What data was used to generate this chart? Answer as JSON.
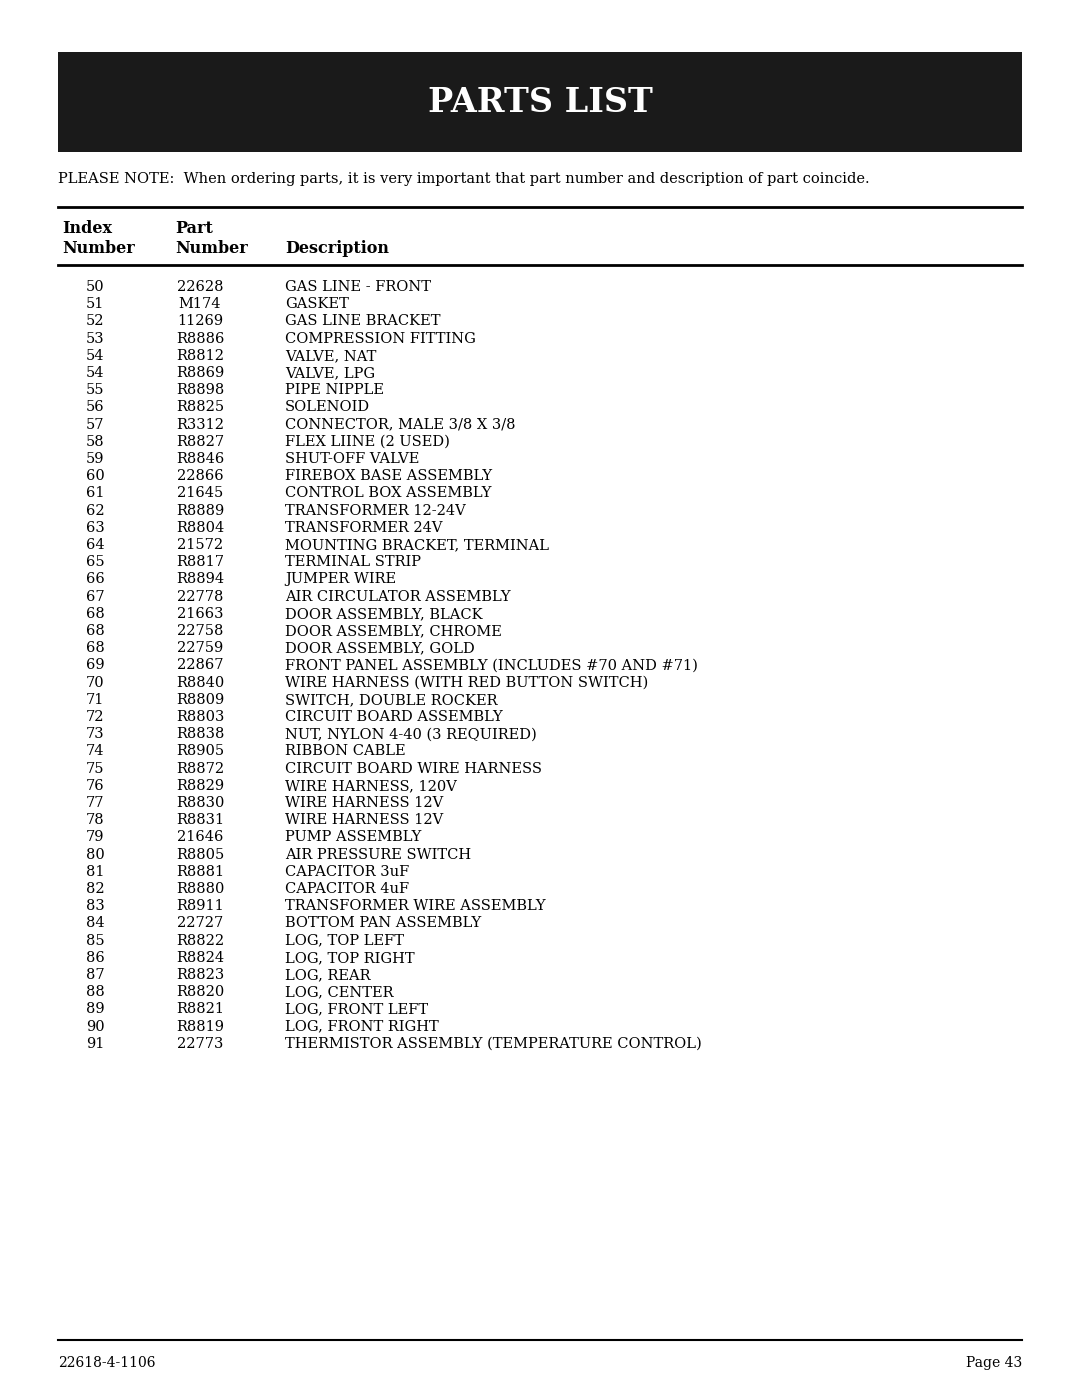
{
  "title": "PARTS LIST",
  "note": "PLEASE NOTE:  When ordering parts, it is very important that part number and description of part coincide.",
  "col_header_line1": [
    "Index",
    "Part",
    ""
  ],
  "col_header_line2": [
    "Number",
    "Number",
    "Description"
  ],
  "rows": [
    [
      "50",
      "22628",
      "GAS LINE - FRONT"
    ],
    [
      "51",
      "M174",
      "GASKET"
    ],
    [
      "52",
      "11269",
      "GAS LINE BRACKET"
    ],
    [
      "53",
      "R8886",
      "COMPRESSION FITTING"
    ],
    [
      "54",
      "R8812",
      "VALVE, NAT"
    ],
    [
      "54",
      "R8869",
      "VALVE, LPG"
    ],
    [
      "55",
      "R8898",
      "PIPE NIPPLE"
    ],
    [
      "56",
      "R8825",
      "SOLENOID"
    ],
    [
      "57",
      "R3312",
      "CONNECTOR, MALE 3/8 X 3/8"
    ],
    [
      "58",
      "R8827",
      "FLEX LIINE (2 USED)"
    ],
    [
      "59",
      "R8846",
      "SHUT-OFF VALVE"
    ],
    [
      "60",
      "22866",
      "FIREBOX BASE ASSEMBLY"
    ],
    [
      "61",
      "21645",
      "CONTROL BOX ASSEMBLY"
    ],
    [
      "62",
      "R8889",
      "TRANSFORMER 12-24V"
    ],
    [
      "63",
      "R8804",
      "TRANSFORMER 24V"
    ],
    [
      "64",
      "21572",
      "MOUNTING BRACKET, TERMINAL"
    ],
    [
      "65",
      "R8817",
      "TERMINAL STRIP"
    ],
    [
      "66",
      "R8894",
      "JUMPER WIRE"
    ],
    [
      "67",
      "22778",
      "AIR CIRCULATOR ASSEMBLY"
    ],
    [
      "68",
      "21663",
      "DOOR ASSEMBLY, BLACK"
    ],
    [
      "68",
      "22758",
      "DOOR ASSEMBLY, CHROME"
    ],
    [
      "68",
      "22759",
      "DOOR ASSEMBLY, GOLD"
    ],
    [
      "69",
      "22867",
      "FRONT PANEL ASSEMBLY (INCLUDES #70 AND #71)"
    ],
    [
      "70",
      "R8840",
      "WIRE HARNESS (WITH RED BUTTON SWITCH)"
    ],
    [
      "71",
      "R8809",
      "SWITCH, DOUBLE ROCKER"
    ],
    [
      "72",
      "R8803",
      "CIRCUIT BOARD ASSEMBLY"
    ],
    [
      "73",
      "R8838",
      "NUT, NYLON 4-40 (3 REQUIRED)"
    ],
    [
      "74",
      "R8905",
      "RIBBON CABLE"
    ],
    [
      "75",
      "R8872",
      "CIRCUIT BOARD WIRE HARNESS"
    ],
    [
      "76",
      "R8829",
      "WIRE HARNESS, 120V"
    ],
    [
      "77",
      "R8830",
      "WIRE HARNESS 12V"
    ],
    [
      "78",
      "R8831",
      "WIRE HARNESS 12V"
    ],
    [
      "79",
      "21646",
      "PUMP ASSEMBLY"
    ],
    [
      "80",
      "R8805",
      "AIR PRESSURE SWITCH"
    ],
    [
      "81",
      "R8881",
      "CAPACITOR 3uF"
    ],
    [
      "82",
      "R8880",
      "CAPACITOR 4uF"
    ],
    [
      "83",
      "R8911",
      "TRANSFORMER WIRE ASSEMBLY"
    ],
    [
      "84",
      "22727",
      "BOTTOM PAN ASSEMBLY"
    ],
    [
      "85",
      "R8822",
      "LOG, TOP LEFT"
    ],
    [
      "86",
      "R8824",
      "LOG, TOP RIGHT"
    ],
    [
      "87",
      "R8823",
      "LOG, REAR"
    ],
    [
      "88",
      "R8820",
      "LOG, CENTER"
    ],
    [
      "89",
      "R8821",
      "LOG, FRONT LEFT"
    ],
    [
      "90",
      "R8819",
      "LOG, FRONT RIGHT"
    ],
    [
      "91",
      "22773",
      "THERMISTOR ASSEMBLY (TEMPERATURE CONTROL)"
    ]
  ],
  "footer_left": "22618-4-1106",
  "footer_right": "Page 43",
  "bg_color": "#ffffff",
  "header_bg": "#1a1a1a",
  "header_text_color": "#ffffff",
  "text_color": "#000000",
  "title_fontsize": 24,
  "note_fontsize": 10.5,
  "col_header_fontsize": 11.5,
  "row_fontsize": 10.5,
  "footer_fontsize": 10
}
